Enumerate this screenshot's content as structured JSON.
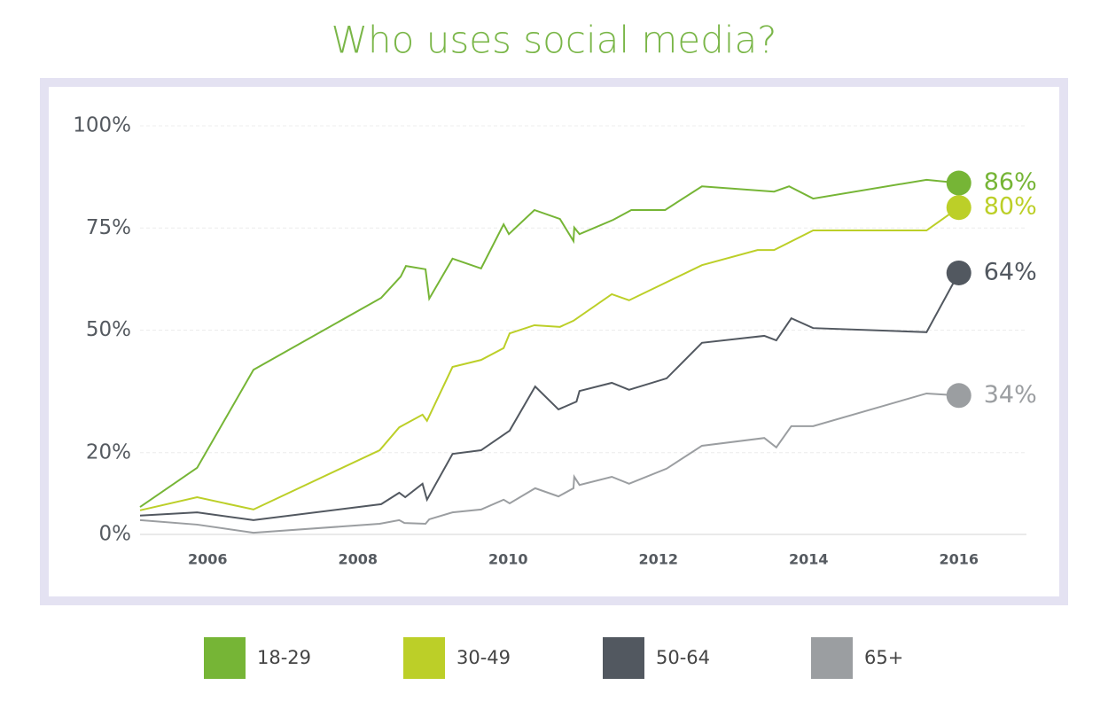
{
  "chart_data": {
    "type": "line",
    "title": "Who uses social media?",
    "xlim": [
      2005.1,
      2016.9
    ],
    "xticks": [
      2006,
      2008,
      2010,
      2012,
      2014,
      2016
    ],
    "ylim": [
      0,
      100
    ],
    "yticks": [
      {
        "value": 0,
        "label": "0%"
      },
      {
        "value": 20,
        "label": "20%"
      },
      {
        "value": 50,
        "label": "50%"
      },
      {
        "value": 75,
        "label": "75%"
      },
      {
        "value": 100,
        "label": "100%"
      }
    ],
    "grid": true,
    "legend": "bottom",
    "series": [
      {
        "name": "18-29",
        "color": "#76b536",
        "x": [
          2005.1,
          2005.86,
          2006.61,
          2008.31,
          2008.57,
          2008.64,
          2008.9,
          2008.95,
          2009.26,
          2009.64,
          2009.94,
          2010.01,
          2010.35,
          2010.69,
          2010.87,
          2010.88,
          2010.95,
          2011.4,
          2011.64,
          2012.09,
          2012.58,
          2013.54,
          2013.74,
          2014.06,
          2015.57,
          2016
        ],
        "values": [
          6.7,
          16.3,
          40.3,
          57.9,
          63.1,
          65.7,
          64.9,
          57.7,
          67.5,
          65.1,
          75.9,
          73.5,
          79.4,
          77.2,
          71.8,
          75.1,
          73.5,
          77,
          79.4,
          79.4,
          85.2,
          83.9,
          85.2,
          82.2,
          86.8,
          86
        ],
        "value_labels": [
          null,
          null,
          null,
          null,
          null,
          null,
          null,
          null,
          null,
          null,
          null,
          null,
          null,
          null,
          null,
          null,
          null,
          null,
          null,
          null,
          null,
          null,
          null,
          null,
          null,
          "86%"
        ]
      },
      {
        "name": "30-49",
        "color": "#bccf28",
        "x": [
          2005.1,
          2005.86,
          2006.61,
          2008.29,
          2008.55,
          2008.6,
          2008.86,
          2008.92,
          2009.26,
          2009.64,
          2009.94,
          2010.02,
          2010.35,
          2010.69,
          2010.87,
          2011.38,
          2011.61,
          2012.58,
          2013.32,
          2013.54,
          2014.06,
          2015.57,
          2016
        ],
        "values": [
          5.9,
          9.1,
          6.1,
          20.6,
          26.2,
          26.7,
          29.3,
          27.8,
          41,
          42.7,
          45.6,
          49.2,
          51.2,
          50.8,
          52.3,
          58.8,
          57.3,
          65.9,
          69.6,
          69.6,
          74.4,
          74.4,
          80
        ],
        "value_labels": [
          null,
          null,
          null,
          null,
          null,
          null,
          null,
          null,
          null,
          null,
          null,
          null,
          null,
          null,
          null,
          null,
          null,
          null,
          null,
          null,
          null,
          null,
          "80%"
        ]
      },
      {
        "name": "50-64",
        "color": "#525860",
        "x": [
          2005.1,
          2005.86,
          2006.61,
          2008.31,
          2008.55,
          2008.63,
          2008.86,
          2008.92,
          2009.26,
          2009.64,
          2010.02,
          2010.36,
          2010.67,
          2010.91,
          2010.95,
          2011.38,
          2011.61,
          2012.11,
          2012.58,
          2013.41,
          2013.57,
          2013.77,
          2014.06,
          2015.57,
          2016
        ],
        "values": [
          4.6,
          5.4,
          3.5,
          7.4,
          10.2,
          9.1,
          12.4,
          8.5,
          19.7,
          20.6,
          25.4,
          36.2,
          30.6,
          32.5,
          35.1,
          37.1,
          35.4,
          38.2,
          46.9,
          48.6,
          47.5,
          52.9,
          50.5,
          49.5,
          64
        ],
        "value_labels": [
          null,
          null,
          null,
          null,
          null,
          null,
          null,
          null,
          null,
          null,
          null,
          null,
          null,
          null,
          null,
          null,
          null,
          null,
          null,
          null,
          null,
          null,
          null,
          null,
          "64%"
        ]
      },
      {
        "name": "65+",
        "color": "#9b9ea1",
        "x": [
          2005.1,
          2005.86,
          2006.61,
          2008.29,
          2008.55,
          2008.62,
          2008.9,
          2008.95,
          2009.26,
          2009.64,
          2009.94,
          2010.02,
          2010.36,
          2010.67,
          2010.87,
          2010.88,
          2010.95,
          2011.38,
          2011.61,
          2012.11,
          2012.58,
          2013.41,
          2013.57,
          2013.77,
          2014.06,
          2015.57,
          2016
        ],
        "values": [
          3.5,
          2.4,
          0.4,
          2.6,
          3.5,
          2.8,
          2.6,
          3.7,
          5.4,
          6.1,
          8.5,
          7.6,
          11.3,
          9.3,
          11.3,
          14.1,
          12.1,
          14.1,
          12.4,
          16.1,
          21.7,
          23.6,
          21.3,
          26.5,
          26.5,
          34.5,
          34
        ],
        "value_labels": [
          null,
          null,
          null,
          null,
          null,
          null,
          null,
          null,
          null,
          null,
          null,
          null,
          null,
          null,
          null,
          null,
          null,
          null,
          null,
          null,
          null,
          null,
          null,
          null,
          null,
          null,
          "34%"
        ]
      }
    ]
  }
}
